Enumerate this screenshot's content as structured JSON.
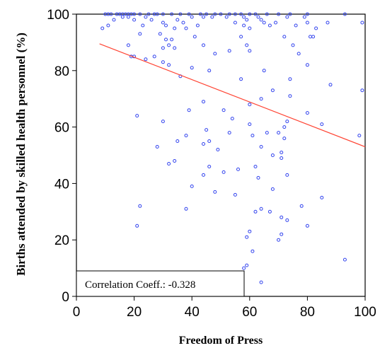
{
  "chart_data": {
    "type": "scatter",
    "title": "",
    "xlabel": "Freedom of Press",
    "ylabel": "Births attended by skilled health personnel (%)",
    "xlim": [
      0,
      100
    ],
    "ylim": [
      0,
      100
    ],
    "xticks": [
      "0",
      "20",
      "40",
      "60",
      "80",
      "100"
    ],
    "yticks": [
      "0",
      "20",
      "40",
      "60",
      "80",
      "100"
    ],
    "grid": false,
    "legend": "none",
    "annotation": "Correlation Coeff.: -0.328",
    "marker_color": "#3344ee",
    "line_color": "#ff4433",
    "series": [
      {
        "type": "scatter",
        "points": [
          [
            10,
            100
          ],
          [
            11,
            100
          ],
          [
            12,
            100
          ],
          [
            14,
            100
          ],
          [
            15,
            100
          ],
          [
            16,
            100
          ],
          [
            17,
            100
          ],
          [
            18,
            100
          ],
          [
            19,
            100
          ],
          [
            20,
            100
          ],
          [
            22,
            100
          ],
          [
            25,
            100
          ],
          [
            27,
            100
          ],
          [
            28,
            100
          ],
          [
            30,
            100
          ],
          [
            33,
            100
          ],
          [
            36,
            100
          ],
          [
            39,
            100
          ],
          [
            43,
            100
          ],
          [
            45,
            100
          ],
          [
            48,
            100
          ],
          [
            50,
            100
          ],
          [
            53,
            100
          ],
          [
            55,
            100
          ],
          [
            57,
            100
          ],
          [
            60,
            100
          ],
          [
            62,
            100
          ],
          [
            66,
            100
          ],
          [
            70,
            100
          ],
          [
            74,
            100
          ],
          [
            80,
            100
          ],
          [
            93,
            100
          ],
          [
            16,
            99
          ],
          [
            18,
            99
          ],
          [
            24,
            99
          ],
          [
            40,
            99
          ],
          [
            44,
            99
          ],
          [
            47,
            99
          ],
          [
            52,
            99
          ],
          [
            58,
            99
          ],
          [
            63,
            99
          ],
          [
            73,
            99
          ],
          [
            79,
            99
          ],
          [
            13,
            98
          ],
          [
            20,
            98
          ],
          [
            26,
            98
          ],
          [
            35,
            98
          ],
          [
            59,
            98
          ],
          [
            64,
            98
          ],
          [
            30,
            97
          ],
          [
            37,
            97
          ],
          [
            55,
            97
          ],
          [
            65,
            97
          ],
          [
            69,
            97
          ],
          [
            80,
            97
          ],
          [
            87,
            97
          ],
          [
            99,
            97
          ],
          [
            11,
            96
          ],
          [
            23,
            96
          ],
          [
            31,
            96
          ],
          [
            42,
            96
          ],
          [
            58,
            96
          ],
          [
            67,
            96
          ],
          [
            76,
            96
          ],
          [
            9,
            95
          ],
          [
            34,
            95
          ],
          [
            38,
            95
          ],
          [
            60,
            95
          ],
          [
            83,
            95
          ],
          [
            22,
            93
          ],
          [
            29,
            93
          ],
          [
            41,
            92
          ],
          [
            57,
            92
          ],
          [
            72,
            92
          ],
          [
            81,
            92
          ],
          [
            82,
            92
          ],
          [
            31,
            91
          ],
          [
            33,
            91
          ],
          [
            18,
            89
          ],
          [
            32,
            89
          ],
          [
            44,
            89
          ],
          [
            59,
            89
          ],
          [
            75,
            89
          ],
          [
            30,
            88
          ],
          [
            34,
            88
          ],
          [
            53,
            87
          ],
          [
            60,
            87
          ],
          [
            77,
            86
          ],
          [
            48,
            86
          ],
          [
            27,
            85
          ],
          [
            19,
            85
          ],
          [
            20,
            85
          ],
          [
            24,
            84
          ],
          [
            30,
            83
          ],
          [
            32,
            82
          ],
          [
            40,
            81
          ],
          [
            46,
            80
          ],
          [
            65,
            80
          ],
          [
            80,
            82
          ],
          [
            74,
            77
          ],
          [
            57,
            77
          ],
          [
            36,
            78
          ],
          [
            88,
            75
          ],
          [
            68,
            73
          ],
          [
            99,
            73
          ],
          [
            74,
            71
          ],
          [
            44,
            69
          ],
          [
            64,
            70
          ],
          [
            60,
            68
          ],
          [
            51,
            66
          ],
          [
            39,
            66
          ],
          [
            80,
            65
          ],
          [
            21,
            64
          ],
          [
            54,
            63
          ],
          [
            30,
            62
          ],
          [
            73,
            62
          ],
          [
            85,
            61
          ],
          [
            60,
            61
          ],
          [
            72,
            60
          ],
          [
            45,
            59
          ],
          [
            53,
            58
          ],
          [
            66,
            58
          ],
          [
            70,
            58
          ],
          [
            61,
            57
          ],
          [
            38,
            57
          ],
          [
            72,
            56
          ],
          [
            98,
            57
          ],
          [
            35,
            55
          ],
          [
            46,
            55
          ],
          [
            44,
            54
          ],
          [
            28,
            53
          ],
          [
            64,
            53
          ],
          [
            49,
            52
          ],
          [
            71,
            51
          ],
          [
            68,
            50
          ],
          [
            71,
            49
          ],
          [
            34,
            48
          ],
          [
            32,
            47
          ],
          [
            46,
            46
          ],
          [
            62,
            46
          ],
          [
            56,
            45
          ],
          [
            51,
            44
          ],
          [
            73,
            43
          ],
          [
            44,
            43
          ],
          [
            63,
            42
          ],
          [
            40,
            39
          ],
          [
            68,
            38
          ],
          [
            48,
            37
          ],
          [
            55,
            36
          ],
          [
            22,
            32
          ],
          [
            38,
            31
          ],
          [
            78,
            32
          ],
          [
            62,
            30
          ],
          [
            64,
            31
          ],
          [
            67,
            30
          ],
          [
            71,
            28
          ],
          [
            73,
            27
          ],
          [
            80,
            25
          ],
          [
            21,
            25
          ],
          [
            60,
            23
          ],
          [
            59,
            21
          ],
          [
            71,
            22
          ],
          [
            70,
            20
          ],
          [
            61,
            16
          ],
          [
            59,
            11
          ],
          [
            58,
            10
          ],
          [
            64,
            5
          ],
          [
            93,
            13
          ],
          [
            85,
            35
          ]
        ]
      },
      {
        "type": "line",
        "points": [
          [
            8,
            89.5
          ],
          [
            100,
            53
          ]
        ]
      }
    ]
  }
}
